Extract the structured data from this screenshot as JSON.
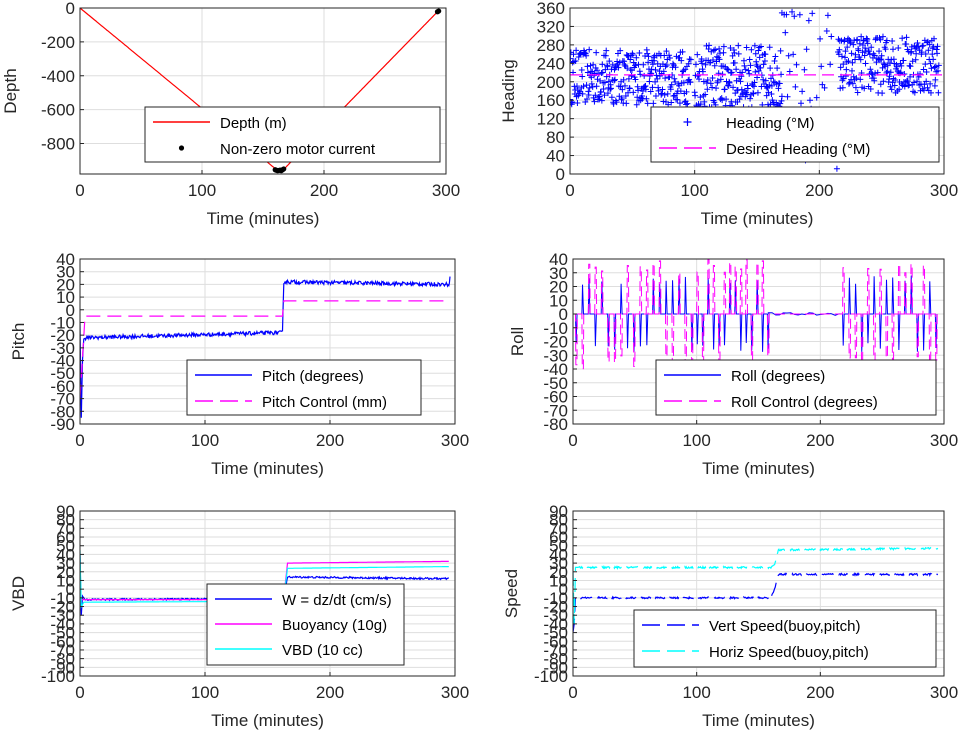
{
  "chart_data": [
    {
      "id": "depth",
      "type": "line",
      "xlabel": "Time (minutes)",
      "ylabel": "Depth",
      "xlim": [
        0,
        300
      ],
      "ylim": [
        -980,
        0
      ],
      "xticks": [
        0,
        100,
        200,
        300
      ],
      "yticks": [
        0,
        -200,
        -400,
        -600,
        -800
      ],
      "grid": true,
      "legend_position": "lower-center",
      "series": [
        {
          "name": "Depth (m)",
          "style": "line",
          "color": "#ff0000",
          "x": [
            0,
            162,
            166,
            294
          ],
          "y": [
            0,
            -960,
            -960,
            -15
          ]
        },
        {
          "name": "Non-zero motor current",
          "style": "dots",
          "color": "#000000",
          "x": [
            160,
            161,
            162,
            163,
            164,
            165,
            166,
            167,
            293,
            294
          ],
          "y": [
            -955,
            -958,
            -960,
            -959,
            -957,
            -960,
            -955,
            -950,
            -22,
            -18
          ]
        }
      ]
    },
    {
      "id": "heading",
      "type": "scatter",
      "xlabel": "Time (minutes)",
      "ylabel": "Heading",
      "xlim": [
        0,
        300
      ],
      "ylim": [
        0,
        360
      ],
      "xticks": [
        0,
        100,
        200,
        300
      ],
      "yticks": [
        0,
        40,
        80,
        120,
        160,
        200,
        240,
        280,
        320,
        360
      ],
      "grid": true,
      "legend_position": "lower-right",
      "series": [
        {
          "name": "Heading (°M)",
          "style": "plus",
          "color": "#0000ff",
          "bands": [
            {
              "from": 0,
              "to": 97,
              "ylow": 150,
              "yhigh": 270
            },
            {
              "from": 100,
              "to": 170,
              "ylow": 140,
              "yhigh": 280
            },
            {
              "from": 170,
              "to": 215,
              "ylow": 10,
              "yhigh": 360
            },
            {
              "from": 215,
              "to": 296,
              "ylow": 175,
              "yhigh": 300
            }
          ]
        },
        {
          "name": "Desired Heading (°M)",
          "style": "dash",
          "color": "#ff00ff",
          "x": [
            0,
            300
          ],
          "y": [
            215,
            215
          ]
        }
      ]
    },
    {
      "id": "pitch",
      "type": "line",
      "xlabel": "Time (minutes)",
      "ylabel": "Pitch",
      "xlim": [
        0,
        300
      ],
      "ylim": [
        -90,
        40
      ],
      "xticks": [
        0,
        100,
        200,
        300
      ],
      "yticks": [
        40,
        30,
        20,
        10,
        0,
        -10,
        -20,
        -30,
        -40,
        -50,
        -60,
        -70,
        -80,
        -90
      ],
      "grid": true,
      "legend_position": "lower-right",
      "series": [
        {
          "name": "Pitch (degrees)",
          "style": "line",
          "color": "#0000ff",
          "x": [
            0,
            1,
            2,
            3,
            5,
            160,
            162,
            163,
            295,
            296
          ],
          "y": [
            -10,
            -85,
            -40,
            -23,
            -22,
            -18,
            -18,
            22,
            20,
            25
          ]
        },
        {
          "name": "Pitch Control (mm)",
          "style": "dash",
          "color": "#ff00ff",
          "x": [
            0,
            4,
            160,
            162,
            163,
            296
          ],
          "y": [
            -70,
            -5,
            -5,
            -5,
            7,
            7
          ]
        }
      ]
    },
    {
      "id": "roll",
      "type": "line",
      "xlabel": "Time (minutes)",
      "ylabel": "Roll",
      "xlim": [
        0,
        300
      ],
      "ylim": [
        -80,
        40
      ],
      "xticks": [
        0,
        100,
        200,
        300
      ],
      "yticks": [
        40,
        30,
        20,
        10,
        0,
        -10,
        -20,
        -30,
        -40,
        -50,
        -60,
        -70,
        -80
      ],
      "grid": true,
      "legend_position": "lower-right",
      "series": [
        {
          "name": "Roll (degrees)",
          "style": "line",
          "color": "#0000ff",
          "x": [
            0,
            296
          ],
          "y": [
            0,
            0
          ]
        },
        {
          "name": "Roll Control (degrees)",
          "style": "dash",
          "color": "#ff00ff",
          "x": [
            0,
            296
          ],
          "y": [
            0,
            0
          ]
        }
      ]
    },
    {
      "id": "vbd",
      "type": "line",
      "xlabel": "Time (minutes)",
      "ylabel": "VBD",
      "xlim": [
        0,
        300
      ],
      "ylim": [
        -100,
        90
      ],
      "xticks": [
        0,
        100,
        200,
        300
      ],
      "yticks": [
        90,
        80,
        70,
        60,
        50,
        40,
        30,
        20,
        10,
        0,
        -10,
        -20,
        -30,
        -40,
        -50,
        -60,
        -70,
        -80,
        -90,
        -100
      ],
      "grid": true,
      "legend_position": "lower-right",
      "series": [
        {
          "name": "W = dz/dt (cm/s)",
          "style": "line",
          "color": "#0000ff",
          "x": [
            0,
            1,
            2,
            4,
            160,
            162,
            165,
            166,
            295
          ],
          "y": [
            40,
            -30,
            -8,
            -12,
            -11,
            -10,
            5,
            14,
            12
          ]
        },
        {
          "name": "Buoyancy (10g)",
          "style": "line",
          "color": "#ff00ff",
          "x": [
            0,
            3,
            160,
            163,
            166,
            295
          ],
          "y": [
            -12,
            -12,
            -12,
            -10,
            30,
            32
          ]
        },
        {
          "name": "VBD (10 cc)",
          "style": "line",
          "color": "#00ffff",
          "x": [
            0,
            1,
            3,
            160,
            163,
            166,
            295
          ],
          "y": [
            45,
            -20,
            -15,
            -14,
            -10,
            24,
            26
          ]
        }
      ]
    },
    {
      "id": "speed",
      "type": "line",
      "xlabel": "Time (minutes)",
      "ylabel": "Speed",
      "xlim": [
        0,
        300
      ],
      "ylim": [
        -100,
        90
      ],
      "xticks": [
        0,
        100,
        200,
        300
      ],
      "yticks": [
        90,
        80,
        70,
        60,
        50,
        40,
        30,
        20,
        10,
        0,
        -10,
        -20,
        -30,
        -40,
        -50,
        -60,
        -70,
        -80,
        -90,
        -100
      ],
      "grid": true,
      "legend_position": "lower-right",
      "series": [
        {
          "name": "Vert Speed(buoy,pitch)",
          "style": "dash",
          "color": "#0000ff",
          "x": [
            0,
            1,
            2,
            4,
            155,
            160,
            163,
            166,
            295
          ],
          "y": [
            -50,
            -40,
            -10,
            -10,
            -10,
            -10,
            0,
            17,
            17
          ]
        },
        {
          "name": "Horiz Speed(buoy,pitch)",
          "style": "dash",
          "color": "#00ffff",
          "x": [
            0,
            1,
            2,
            4,
            160,
            163,
            166,
            295
          ],
          "y": [
            20,
            -40,
            25,
            25,
            25,
            28,
            45,
            47
          ]
        }
      ]
    }
  ]
}
